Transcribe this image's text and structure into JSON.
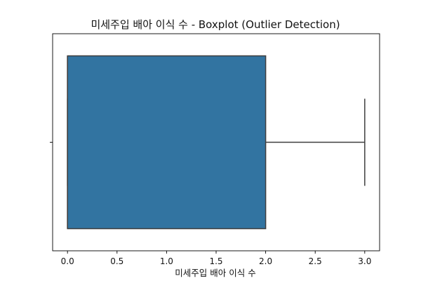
{
  "chart_data": {
    "type": "boxplot",
    "orientation": "horizontal",
    "title": "미세주입 배아 이식 수 - Boxplot (Outlier Detection)",
    "xlabel": "미세주입 배아 이식 수",
    "ylabel": "",
    "xlim": [
      -0.15,
      3.15
    ],
    "xticks": [
      0.0,
      0.5,
      1.0,
      1.5,
      2.0,
      2.5,
      3.0
    ],
    "xtick_labels": [
      "0.0",
      "0.5",
      "1.0",
      "1.5",
      "2.0",
      "2.5",
      "3.0"
    ],
    "grid": false,
    "box": {
      "min": 0,
      "q1": 0,
      "median": 0,
      "q3": 2,
      "max": 3,
      "color": "#3274a1",
      "edge_color": "#3f3f3f"
    },
    "outliers": []
  }
}
